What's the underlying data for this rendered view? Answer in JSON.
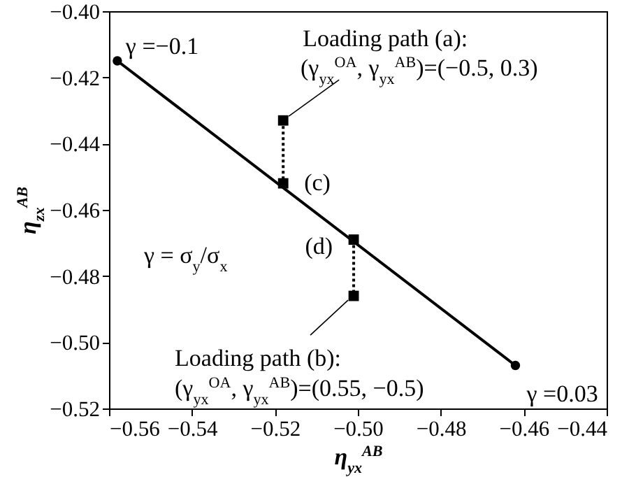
{
  "chart_data": {
    "type": "line",
    "xlabel": "η$_{yx}$$^{AB}$",
    "ylabel": "η$_{zx}$$^{AB}$",
    "xlim": [
      -0.56,
      -0.44
    ],
    "xticks": [
      {
        "value": -0.56,
        "label": "−0.56"
      },
      {
        "value": -0.54,
        "label": "−0.54"
      },
      {
        "value": -0.52,
        "label": "−0.52"
      },
      {
        "value": -0.5,
        "label": "−0.50"
      },
      {
        "value": -0.48,
        "label": "−0.48"
      },
      {
        "value": -0.46,
        "label": "−0.46"
      },
      {
        "value": -0.44,
        "label": "−0.44"
      }
    ],
    "ylim": [
      -0.52,
      -0.4
    ],
    "yticks": [
      {
        "value": -0.52,
        "label": "−0.52"
      },
      {
        "value": -0.5,
        "label": "−0.50"
      },
      {
        "value": -0.48,
        "label": "−0.48"
      },
      {
        "value": -0.46,
        "label": "−0.46"
      },
      {
        "value": -0.44,
        "label": "−0.44"
      },
      {
        "value": -0.42,
        "label": "−0.42"
      },
      {
        "value": -0.4,
        "label": "−0.40"
      }
    ],
    "grid": false,
    "series": [
      {
        "color": "#000000",
        "marker": "circle",
        "line_style": "solid",
        "x": [
          -0.558,
          -0.462
        ],
        "values": [
          -0.415,
          -0.507
        ]
      },
      {
        "color": "#000000",
        "marker": "none",
        "line_style": "dotted",
        "x": [
          -0.518,
          -0.518
        ],
        "values": [
          -0.433,
          -0.452
        ]
      },
      {
        "color": "#000000",
        "marker": "none",
        "line_style": "dotted",
        "x": [
          -0.501,
          -0.501
        ],
        "values": [
          -0.469,
          -0.486
        ]
      },
      {
        "type": "scatter",
        "color": "#000000",
        "marker": "square",
        "x": [
          -0.518,
          -0.518,
          -0.501,
          -0.501
        ],
        "values": [
          -0.433,
          -0.452,
          -0.469,
          -0.486
        ]
      }
    ],
    "annotations": [
      {
        "text": "γ =−0.1",
        "x": -0.558,
        "y": -0.415
      },
      {
        "text": "Loading path (a):",
        "x": -0.518,
        "y": -0.433
      },
      "(γ$_{yx}$$^{OA}$, γ$_{yx}$$^{AB}$)=(−0.5, 0.3)",
      {
        "text": "(c)",
        "x": -0.518,
        "y": -0.452
      },
      {
        "text": "(d)",
        "x": -0.501,
        "y": -0.469
      },
      "γ = σ$_{y}$/σ$_{x}$",
      {
        "text": "Loading path (b):",
        "x": -0.501,
        "y": -0.486
      },
      "(γ$_{yx}$$^{OA}$, γ$_{yx}$$^{AB}$)=(0.55, −0.5)",
      {
        "text": "γ =0.03",
        "x": -0.462,
        "y": -0.507
      }
    ]
  }
}
